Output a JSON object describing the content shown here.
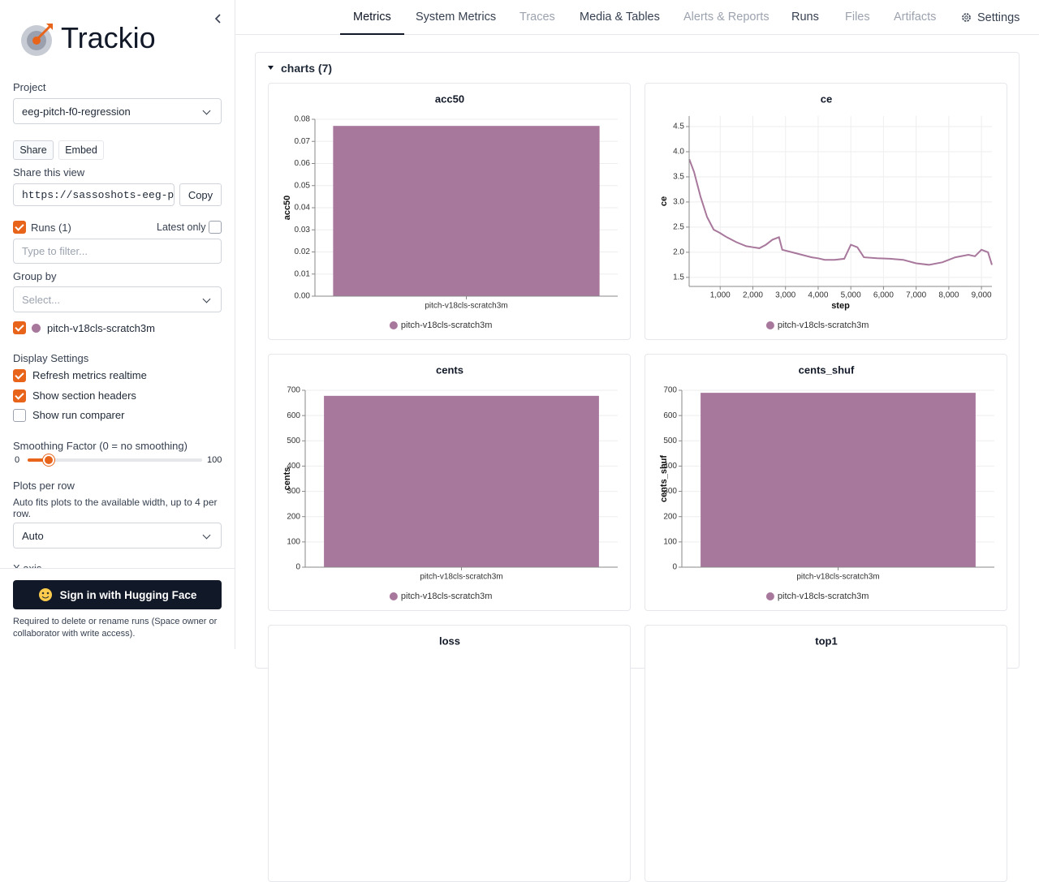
{
  "sidebar": {
    "brand": "Trackio",
    "project_label": "Project",
    "project": "eeg-pitch-f0-regression",
    "share_tab": "Share",
    "embed_tab": "Embed",
    "share_label": "Share this view",
    "share_url": "https://sassoshots-eeg-pi",
    "copy": "Copy",
    "runs_label": "Runs (1)",
    "latest_only": "Latest only",
    "filter_placeholder": "Type to filter...",
    "group_by_label": "Group by",
    "group_by_placeholder": "Select...",
    "run": "pitch-v18cls-scratch3m",
    "display_settings": "Display Settings",
    "options": [
      "Refresh metrics realtime",
      "Show section headers",
      "Show run comparer"
    ],
    "smoothing": {
      "label": "Smoothing Factor (0 = no smoothing)",
      "min": 0,
      "max": 100,
      "value": 12
    },
    "plots_per_row": {
      "label": "Plots per row",
      "help": "Auto fits plots to the available width, up to 4 per row.",
      "value": "Auto"
    },
    "x_axis_label": "X axis",
    "sign_in": "Sign in with Hugging Face",
    "sign_in_note": "Required to delete or rename runs (Space owner or collaborator with write access)."
  },
  "nav": {
    "tabs": [
      {
        "label": "Metrics",
        "state": "active"
      },
      {
        "label": "System Metrics",
        "state": "normal"
      },
      {
        "label": "Traces",
        "state": "disabled"
      },
      {
        "label": "Media & Tables",
        "state": "normal"
      },
      {
        "label": "Alerts & Reports",
        "state": "disabled"
      },
      {
        "label": "Runs",
        "state": "normal"
      },
      {
        "label": "Files",
        "state": "disabled"
      },
      {
        "label": "Artifacts",
        "state": "disabled"
      }
    ],
    "settings": "Settings"
  },
  "section_title": "charts (7)",
  "chart_data": [
    {
      "type": "bar",
      "title": "acc50",
      "ylabel": "acc50",
      "categories": [
        "pitch-v18cls-scratch3m"
      ],
      "series": [
        {
          "name": "pitch-v18cls-scratch3m",
          "color": "#a8779c",
          "values": [
            0.077
          ]
        }
      ],
      "ylim": [
        0,
        0.08
      ],
      "yticks": [
        {
          "value": 0,
          "label": "0.00"
        },
        0.01,
        0.02,
        0.03,
        0.04,
        0.05,
        0.06,
        0.07,
        0.08
      ],
      "grid": true
    },
    {
      "type": "line",
      "title": "ce",
      "ylabel": "ce",
      "xlabel": "step",
      "x": [
        56,
        200,
        400,
        600,
        800,
        1000,
        1200,
        1500,
        1800,
        2000,
        2200,
        2400,
        2600,
        2800,
        2900,
        3200,
        3500,
        3800,
        4000,
        4200,
        4500,
        4800,
        5000,
        5200,
        5400,
        5800,
        6200,
        6600,
        7000,
        7400,
        7800,
        8200,
        8600,
        8800,
        9000,
        9200,
        9320
      ],
      "series": [
        {
          "name": "pitch-v18cls-scratch3m",
          "color": "#a8779c",
          "values": [
            3.85,
            3.6,
            3.1,
            2.7,
            2.45,
            2.38,
            2.3,
            2.2,
            2.12,
            2.1,
            2.08,
            2.15,
            2.25,
            2.3,
            2.05,
            2.0,
            1.95,
            1.9,
            1.88,
            1.85,
            1.85,
            1.87,
            2.15,
            2.1,
            1.9,
            1.88,
            1.87,
            1.85,
            1.78,
            1.75,
            1.8,
            1.9,
            1.95,
            1.92,
            2.05,
            2.0,
            1.75
          ]
        }
      ],
      "xlim": [
        50,
        9320
      ],
      "ylim": [
        1.32,
        4.71
      ],
      "xticks": [
        {
          "value": 1000,
          "label": "1,000"
        },
        {
          "value": 2000,
          "label": "2,000"
        },
        {
          "value": 3000,
          "label": "3,000"
        },
        {
          "value": 4000,
          "label": "4,000"
        },
        {
          "value": 5000,
          "label": "5,000"
        },
        {
          "value": 6000,
          "label": "6,000"
        },
        {
          "value": 7000,
          "label": "7,000"
        },
        {
          "value": 8000,
          "label": "8,000"
        },
        {
          "value": 9000,
          "label": "9,000"
        }
      ],
      "yticks": [
        1.5,
        {
          "value": 2,
          "label": "2.0"
        },
        2.5,
        {
          "value": 3,
          "label": "3.0"
        },
        3.5,
        {
          "value": 4,
          "label": "4.0"
        },
        4.5
      ],
      "grid": true
    },
    {
      "type": "bar",
      "title": "cents",
      "ylabel": "cents",
      "categories": [
        "pitch-v18cls-scratch3m"
      ],
      "series": [
        {
          "name": "pitch-v18cls-scratch3m",
          "color": "#a8779c",
          "values": [
            678
          ]
        }
      ],
      "ylim": [
        0,
        700
      ],
      "yticks": [
        0,
        100,
        200,
        300,
        400,
        500,
        600,
        700
      ],
      "grid": true
    },
    {
      "type": "bar",
      "title": "cents_shuf",
      "ylabel": "cents_shuf",
      "categories": [
        "pitch-v18cls-scratch3m"
      ],
      "series": [
        {
          "name": "pitch-v18cls-scratch3m",
          "color": "#a8779c",
          "values": [
            690
          ]
        }
      ],
      "ylim": [
        0,
        700
      ],
      "yticks": [
        0,
        100,
        200,
        300,
        400,
        500,
        600,
        700
      ],
      "grid": true
    },
    {
      "type": "line",
      "title": "loss"
    },
    {
      "type": "line",
      "title": "top1"
    }
  ]
}
